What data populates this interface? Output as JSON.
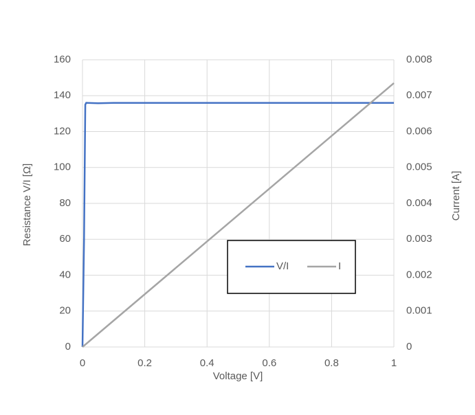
{
  "chart_data": {
    "type": "line",
    "xlabel": "Voltage [V]",
    "ylabel": "Resistance V/I [Ω]",
    "y2label": "Current [A]",
    "xlim": [
      0,
      1
    ],
    "xticks": [
      0,
      0.2,
      0.4,
      0.6,
      0.8,
      1
    ],
    "ylim": [
      0,
      160
    ],
    "yticks": [
      0,
      20,
      40,
      60,
      80,
      100,
      120,
      140,
      160
    ],
    "y2lim": [
      0,
      0.008
    ],
    "y2ticks": [
      0,
      0.001,
      0.002,
      0.003,
      0.004,
      0.005,
      0.006,
      0.007,
      0.008
    ],
    "grid": true,
    "series": [
      {
        "name": "V/I",
        "color": "#4472c4",
        "x": [
          0,
          0.005,
          0.009,
          0.012,
          0.05,
          0.1,
          0.5,
          1
        ],
        "values": [
          0,
          60,
          135,
          136,
          135.8,
          136,
          136,
          136
        ]
      },
      {
        "name": "I",
        "color": "#a5a5a5",
        "axis": "y2",
        "x": [
          0,
          1
        ],
        "values": [
          0,
          0.00735
        ]
      }
    ]
  }
}
